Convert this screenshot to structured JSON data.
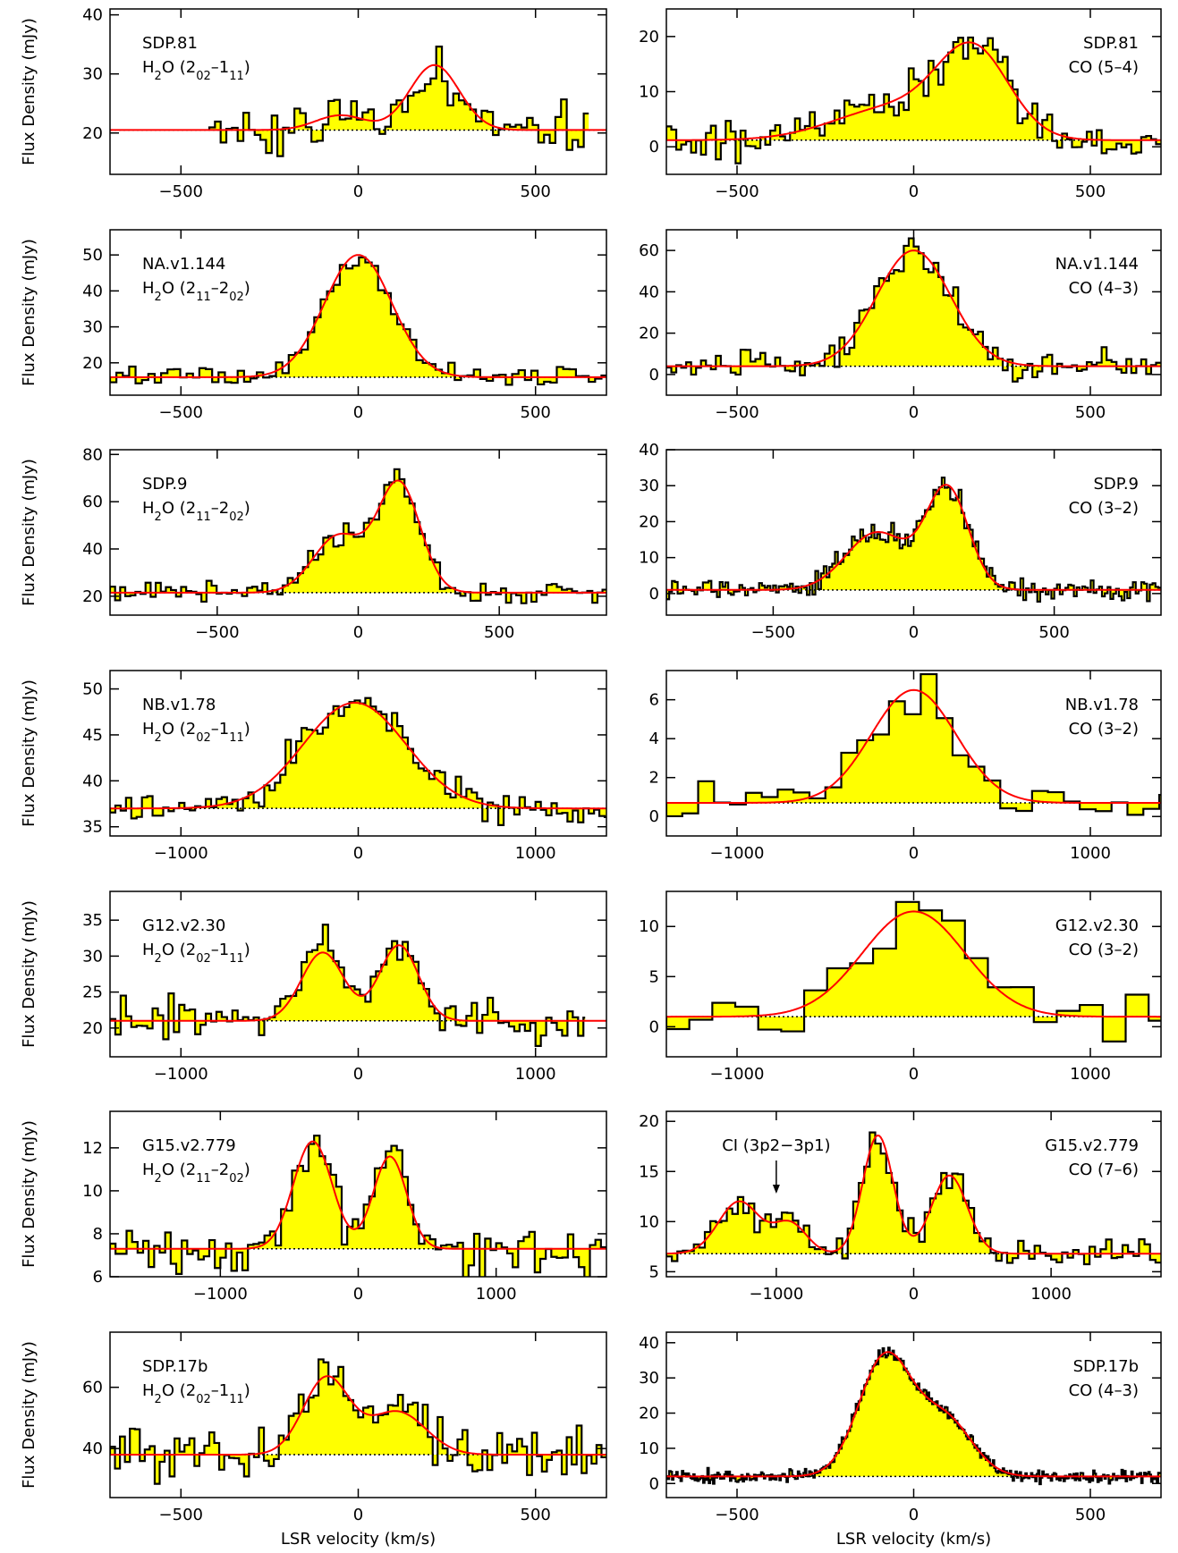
{
  "figure": {
    "ylabel": "Flux Density (mJy)",
    "xlabel": "LSR velocity (km/s)"
  },
  "chart_data": [
    {
      "type": "line",
      "source": "SDP.81",
      "line": "H2O (202–111)",
      "xlim": [
        -700,
        700
      ],
      "ylim": [
        13,
        41
      ],
      "xticks": [
        -500,
        0,
        500
      ],
      "yticks": [
        20,
        30,
        40
      ],
      "baseline": 20.5,
      "xstart": -420,
      "xend": 650,
      "components": [
        {
          "amp": 2.5,
          "center": -50,
          "sigma": 70
        },
        {
          "amp": 11,
          "center": 215,
          "sigma": 70
        }
      ],
      "noise": 4.5,
      "channel": 16
    },
    {
      "type": "line",
      "source": "SDP.81",
      "line": "CO (5–4)",
      "xlim": [
        -700,
        700
      ],
      "ylim": [
        -5,
        25
      ],
      "xticks": [
        -500,
        0,
        500
      ],
      "yticks": [
        0,
        10,
        20
      ],
      "baseline": 1.2,
      "components": [
        {
          "amp": 6,
          "center": -50,
          "sigma": 170
        },
        {
          "amp": 15,
          "center": 170,
          "sigma": 100
        }
      ],
      "noise": 3,
      "channel": 14
    },
    {
      "type": "line",
      "source": "NA.v1.144",
      "line": "H2O (211–202)",
      "xlim": [
        -700,
        700
      ],
      "ylim": [
        11,
        57
      ],
      "xticks": [
        -500,
        0,
        500
      ],
      "yticks": [
        20,
        30,
        40,
        50
      ],
      "baseline": 16,
      "components": [
        {
          "amp": 34,
          "center": 0,
          "sigma": 95
        }
      ],
      "noise": 2.5,
      "channel": 18
    },
    {
      "type": "line",
      "source": "NA.v1.144",
      "line": "CO (4–3)",
      "xlim": [
        -700,
        700
      ],
      "ylim": [
        -10,
        70
      ],
      "xticks": [
        -500,
        0,
        500
      ],
      "yticks": [
        0,
        20,
        40,
        60
      ],
      "baseline": 4,
      "components": [
        {
          "amp": 56,
          "center": 0,
          "sigma": 105
        }
      ],
      "noise": 6,
      "channel": 14
    },
    {
      "type": "line",
      "source": "SDP.9",
      "line": "H2O (211–202)",
      "xlim": [
        -880,
        880
      ],
      "ylim": [
        12,
        82
      ],
      "xticks": [
        -500,
        0,
        500
      ],
      "yticks": [
        20,
        40,
        60,
        80
      ],
      "baseline": 21.5,
      "components": [
        {
          "amp": 24,
          "center": -70,
          "sigma": 90
        },
        {
          "amp": 46,
          "center": 145,
          "sigma": 75
        }
      ],
      "noise": 4,
      "channel": 18
    },
    {
      "type": "line",
      "source": "SDP.9",
      "line": "CO (3–2)",
      "xlim": [
        -880,
        880
      ],
      "ylim": [
        -6,
        40
      ],
      "xticks": [
        -500,
        0,
        500
      ],
      "yticks": [
        0,
        10,
        20,
        30,
        40
      ],
      "baseline": 1,
      "components": [
        {
          "amp": 16,
          "center": -130,
          "sigma": 110
        },
        {
          "amp": 28,
          "center": 120,
          "sigma": 75
        }
      ],
      "noise": 2.5,
      "channel": 10
    },
    {
      "type": "line",
      "source": "NB.v1.78",
      "line": "H2O (202–111)",
      "xlim": [
        -1400,
        1400
      ],
      "ylim": [
        34,
        52
      ],
      "xticks": [
        -1000,
        0,
        1000
      ],
      "yticks": [
        35,
        40,
        45,
        50
      ],
      "baseline": 37,
      "components": [
        {
          "amp": 11.5,
          "center": -20,
          "sigma": 290
        }
      ],
      "noise": 1.5,
      "channel": 30
    },
    {
      "type": "line",
      "source": "NB.v1.78",
      "line": "CO (3–2)",
      "xlim": [
        -1400,
        1400
      ],
      "ylim": [
        -1,
        7.5
      ],
      "xticks": [
        -1000,
        0,
        1000
      ],
      "yticks": [
        0,
        2,
        4,
        6
      ],
      "baseline": 0.7,
      "components": [
        {
          "amp": 5.8,
          "center": 0,
          "sigma": 240
        }
      ],
      "noise": 0.9,
      "channel": 90
    },
    {
      "type": "line",
      "source": "G12.v2.30",
      "line": "H2O (202–111)",
      "xlim": [
        -1400,
        1400
      ],
      "ylim": [
        16,
        39
      ],
      "xticks": [
        -1000,
        0,
        1000
      ],
      "yticks": [
        20,
        25,
        30,
        35
      ],
      "baseline": 21,
      "components": [
        {
          "amp": 9.5,
          "center": -200,
          "sigma": 120
        },
        {
          "amp": 10.5,
          "center": 230,
          "sigma": 110
        }
      ],
      "noise": 2.5,
      "xend": 1280,
      "channel": 30
    },
    {
      "type": "line",
      "source": "G12.v2.30",
      "line": "CO (3–2)",
      "xlim": [
        -1400,
        1400
      ],
      "ylim": [
        -3,
        13.5
      ],
      "xticks": [
        -1000,
        0,
        1000
      ],
      "yticks": [
        0,
        5,
        10
      ],
      "baseline": 1,
      "components": [
        {
          "amp": 10.5,
          "center": 0,
          "sigma": 290
        }
      ],
      "noise": 2.5,
      "channel": 130
    },
    {
      "type": "line",
      "source": "G15.v2.779",
      "line": "H2O (211–202)",
      "xlim": [
        -1800,
        1800
      ],
      "ylim": [
        6,
        13.7
      ],
      "xticks": [
        -1000,
        0,
        1000
      ],
      "yticks": [
        6,
        8,
        10,
        12
      ],
      "baseline": 7.3,
      "components": [
        {
          "amp": 5,
          "center": -330,
          "sigma": 140
        },
        {
          "amp": 4.3,
          "center": 230,
          "sigma": 120
        }
      ],
      "noise": 1,
      "channel": 40
    },
    {
      "type": "line",
      "source": "G15.v2.779",
      "line": "CO (7–6)",
      "xlim": [
        -1800,
        1800
      ],
      "ylim": [
        4.5,
        21
      ],
      "xticks": [
        -1000,
        0,
        1000
      ],
      "yticks": [
        5,
        10,
        15,
        20
      ],
      "baseline": 6.8,
      "components": [
        {
          "amp": 5.2,
          "center": -1270,
          "sigma": 150
        },
        {
          "amp": 3,
          "center": -900,
          "sigma": 120
        },
        {
          "amp": 11.8,
          "center": -260,
          "sigma": 110
        },
        {
          "amp": 7.8,
          "center": 260,
          "sigma": 130
        }
      ],
      "annotation": {
        "text": "CI (3p2−3p1)",
        "x": -1000
      },
      "noise": 1.3,
      "channel": 40
    },
    {
      "type": "line",
      "source": "SDP.17b",
      "line": "H2O (202–111)",
      "xlim": [
        -700,
        700
      ],
      "ylim": [
        24,
        78
      ],
      "xticks": [
        -500,
        0,
        500
      ],
      "yticks": [
        40,
        60
      ],
      "baseline": 38,
      "components": [
        {
          "amp": 25,
          "center": -90,
          "sigma": 65
        },
        {
          "amp": 14,
          "center": 110,
          "sigma": 80
        }
      ],
      "noise": 7,
      "channel": 14
    },
    {
      "type": "line",
      "source": "SDP.17b",
      "line": "CO (4–3)",
      "xlim": [
        -700,
        700
      ],
      "ylim": [
        -4,
        43
      ],
      "xticks": [
        -500,
        0,
        500
      ],
      "yticks": [
        0,
        10,
        20,
        30,
        40
      ],
      "baseline": 2,
      "components": [
        {
          "amp": 34,
          "center": -80,
          "sigma": 75
        },
        {
          "amp": 16,
          "center": 90,
          "sigma": 75
        }
      ],
      "noise": 1.5,
      "channel": 4
    }
  ]
}
